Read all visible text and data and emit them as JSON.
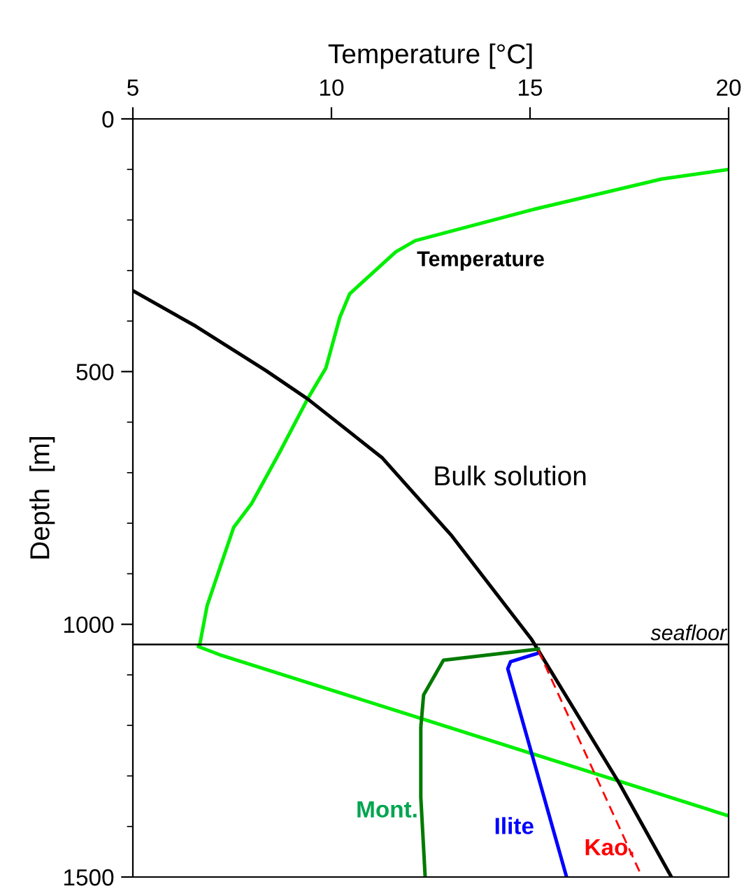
{
  "chart_data": {
    "type": "line",
    "xlabel": "Temperature [°C]",
    "ylabel": "Depth  [m]",
    "xlim": [
      5,
      20
    ],
    "xticks": [
      5,
      10,
      15,
      20
    ],
    "ylim": [
      1500,
      0
    ],
    "yticks": [
      0,
      500,
      1000,
      1500
    ],
    "grid": false,
    "legend": false,
    "marker": "none",
    "series": [
      {
        "color": "#00ee00",
        "x": [
          20,
          18.31,
          15.04,
          12.11,
          11.62,
          10.46,
          10.21,
          9.86,
          9.4,
          8.7,
          7.99,
          7.54,
          7.18,
          6.87,
          6.69,
          6.65,
          7.18,
          19.96
        ],
        "values": [
          100,
          119,
          180,
          241,
          263,
          346,
          393,
          493,
          554,
          659,
          761,
          808,
          891,
          963,
          1038,
          1044,
          1060,
          1378
        ]
      },
      {
        "name": "Bulk solution",
        "color": "#000000",
        "x": [
          5,
          6.58,
          8.35,
          9.4,
          11.27,
          13.03,
          15.04,
          17.25,
          18.56
        ],
        "values": [
          340,
          410,
          498,
          554,
          670,
          825,
          1030,
          1315,
          1500
        ]
      },
      {
        "name": "Mont.",
        "color": "#007a00",
        "x": [
          15.21,
          12.82,
          12.32,
          12.25,
          12.25,
          12.36
        ],
        "values": [
          1049,
          1071,
          1140,
          1204,
          1342,
          1500
        ]
      },
      {
        "name": "Ilite",
        "color": "#0000ff",
        "x": [
          15.21,
          14.51,
          14.44,
          15.92
        ],
        "values": [
          1057,
          1074,
          1088,
          1500
        ]
      },
      {
        "name": "Kao.",
        "color": "#ff0000",
        "line_style": "dashed",
        "x": [
          15.21,
          17.82
        ],
        "values": [
          1052,
          1500
        ]
      }
    ],
    "annotations": [
      "Temperature"
    ],
    "ref_lines": [
      {
        "axis": "y",
        "value": 1040,
        "label": "seafloor",
        "color": "#000000"
      }
    ]
  }
}
